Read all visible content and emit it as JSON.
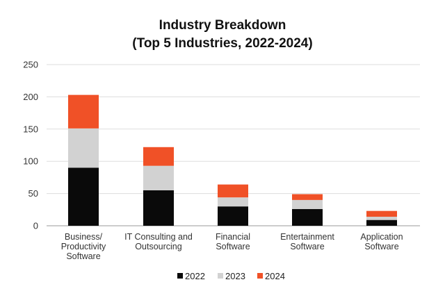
{
  "chart_data": {
    "type": "bar",
    "stacked": true,
    "title": [
      "Industry Breakdown",
      "(Top 5 Industries, 2022-2024)"
    ],
    "xlabel": "",
    "ylabel": "",
    "ylim": [
      0,
      250
    ],
    "yticks": [
      0,
      50,
      100,
      150,
      200,
      250
    ],
    "grid": true,
    "legend_position": "bottom",
    "categories": [
      [
        "Business/",
        "Productivity",
        "Software"
      ],
      [
        "IT Consulting and",
        "Outsourcing"
      ],
      [
        "Financial",
        "Software"
      ],
      [
        "Entertainment",
        "Software"
      ],
      [
        "Application",
        "Software"
      ]
    ],
    "series": [
      {
        "name": "2022",
        "color": "#0a0a0a",
        "values": [
          90,
          55,
          30,
          26,
          9
        ]
      },
      {
        "name": "2023",
        "color": "#d2d2d2",
        "values": [
          61,
          38,
          14,
          14,
          5
        ]
      },
      {
        "name": "2024",
        "color": "#f05127",
        "values": [
          52,
          29,
          20,
          9,
          9
        ]
      }
    ]
  }
}
